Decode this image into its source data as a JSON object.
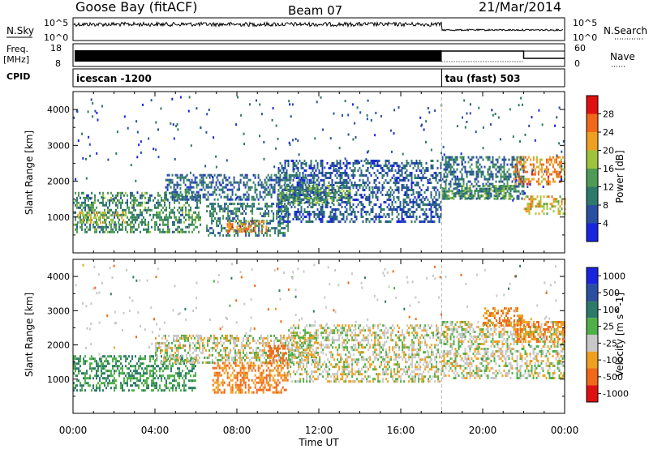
{
  "header": {
    "station": "Goose Bay (fitACF)",
    "beam": "Beam 07",
    "date": "21/Mar/2014"
  },
  "status_panels": {
    "nsky_label": "N.Sky",
    "nsearch_label": "N.Search",
    "noise_ticks": [
      "10^5",
      "10^0"
    ],
    "freq_label_1": "Freq.",
    "freq_label_2": "[MHz]",
    "freq_ticks": [
      "18",
      "8"
    ],
    "nave_label": "Nave",
    "nave_ticks": [
      "60",
      "0"
    ],
    "cpid_label": "CPID",
    "cpid_segments": [
      {
        "label": "icescan -1200",
        "start_hour": 0,
        "end_hour": 18
      },
      {
        "label": "tau (fast) 503",
        "start_hour": 18,
        "end_hour": 24
      }
    ],
    "mode_change_hour": 18,
    "nave_drop_hour": 22
  },
  "chart_data": [
    {
      "type": "heatmap",
      "title": "",
      "xlabel": "",
      "ylabel": "Slant Range [km]",
      "xlim": [
        0,
        24
      ],
      "ylim": [
        0,
        4500
      ],
      "yticks": [
        1000,
        2000,
        3000,
        4000
      ],
      "colorbar_label": "Power [dB]",
      "colorbar_ticks": [
        "4",
        "8",
        "12",
        "16",
        "20",
        "24",
        "28"
      ],
      "colorbar_levels": [
        4,
        8,
        12,
        16,
        20,
        24,
        28
      ],
      "colors": [
        "#1a24e0",
        "#2a4fa0",
        "#2e7a6a",
        "#4f9a55",
        "#9ec43c",
        "#f0a020",
        "#f06818",
        "#e01010"
      ],
      "echo_regions": [
        {
          "t0": 0.0,
          "t1": 6.2,
          "r0": 600,
          "r1": 1700,
          "value": 12
        },
        {
          "t0": 0.2,
          "t1": 2.5,
          "r0": 850,
          "r1": 1150,
          "value": 18
        },
        {
          "t0": 6.5,
          "t1": 10.5,
          "r0": 500,
          "r1": 1400,
          "value": 10
        },
        {
          "t0": 7.5,
          "t1": 9.5,
          "r0": 600,
          "r1": 900,
          "value": 24
        },
        {
          "t0": 4.5,
          "t1": 12.0,
          "r0": 1500,
          "r1": 2200,
          "value": 8
        },
        {
          "t0": 10.0,
          "t1": 18.0,
          "r0": 900,
          "r1": 2600,
          "value": 7
        },
        {
          "t0": 10.0,
          "t1": 13.5,
          "r0": 1400,
          "r1": 1900,
          "value": 14
        },
        {
          "t0": 18.0,
          "t1": 22.0,
          "r0": 1500,
          "r1": 2700,
          "value": 9
        },
        {
          "t0": 18.0,
          "t1": 21.5,
          "r0": 1500,
          "r1": 1900,
          "value": 14
        },
        {
          "t0": 21.5,
          "t1": 24.0,
          "r0": 1900,
          "r1": 2700,
          "value": 24
        },
        {
          "t0": 22.0,
          "t1": 24.0,
          "r0": 1100,
          "r1": 1600,
          "value": 20
        }
      ]
    },
    {
      "type": "heatmap",
      "title": "",
      "xlabel": "Time UT",
      "ylabel": "Slant Range [km]",
      "xlim": [
        0,
        24
      ],
      "ylim": [
        0,
        4500
      ],
      "yticks": [
        1000,
        2000,
        3000,
        4000
      ],
      "xticks": [
        "00:00",
        "04:00",
        "08:00",
        "12:00",
        "16:00",
        "20:00",
        "00:00"
      ],
      "colorbar_label": "Velocity [m s^-1]",
      "colorbar_ticks": [
        "1000",
        "500",
        "100",
        "25",
        "-25",
        "-100",
        "-500",
        "-1000"
      ],
      "colorbar_levels": [
        1000,
        500,
        100,
        25,
        -25,
        -100,
        -500,
        -1000
      ],
      "colors": [
        "#1a24e0",
        "#2a4fa0",
        "#2e7a6a",
        "#4fb048",
        "#c8c8c8",
        "#f0a020",
        "#f06818",
        "#e01010"
      ],
      "echo_regions": [
        {
          "t0": 0.0,
          "t1": 6.0,
          "r0": 700,
          "r1": 1700,
          "value": 100
        },
        {
          "t0": 4.0,
          "t1": 12.0,
          "r0": 1500,
          "r1": 2300,
          "value": 0
        },
        {
          "t0": 6.8,
          "t1": 10.5,
          "r0": 600,
          "r1": 1500,
          "value": -100
        },
        {
          "t0": 9.5,
          "t1": 10.5,
          "r0": 1500,
          "r1": 2000,
          "value": -300
        },
        {
          "t0": 10.5,
          "t1": 18.0,
          "r0": 900,
          "r1": 2600,
          "value": 0
        },
        {
          "t0": 18.0,
          "t1": 24.0,
          "r0": 1000,
          "r1": 2700,
          "value": 0
        },
        {
          "t0": 21.5,
          "t1": 24.0,
          "r0": 2100,
          "r1": 2700,
          "value": -100
        },
        {
          "t0": 20.0,
          "t1": 22.0,
          "r0": 2600,
          "r1": 3100,
          "value": -100
        }
      ]
    }
  ]
}
